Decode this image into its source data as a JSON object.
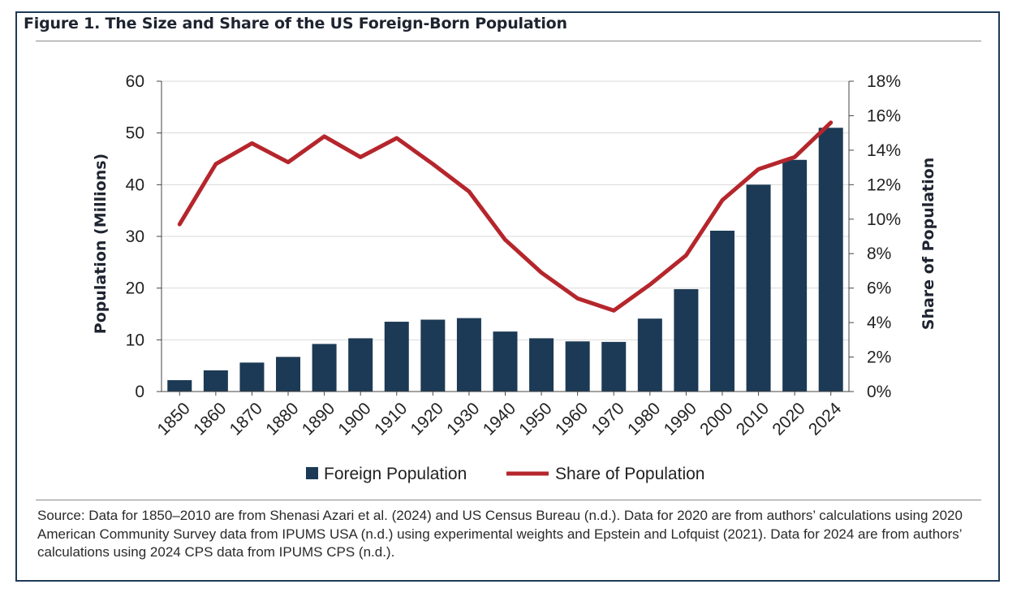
{
  "title": "Figure 1. The Size and Share of the US Foreign-Born Population",
  "source": "Source: Data for 1850–2010 are from Shenasi Azari et al. (2024) and US Census Bureau (n.d.). Data for 2020 are from authors’ calculations using 2020 American Community Survey data from IPUMS USA (n.d.) using experimental weights and Epstein and Lofquist (2021). Data for 2024 are from authors’ calculations using 2024 CPS data from IPUMS CPS (n.d.).",
  "colors": {
    "bar": "#1c3a55",
    "line": "#b5262c",
    "grid": "#d9d9d9",
    "border": "#1f3a57"
  },
  "chart_data": {
    "type": "bar",
    "title": "Figure 1. The Size and Share of the US Foreign-Born Population",
    "categories": [
      "1850",
      "1860",
      "1870",
      "1880",
      "1890",
      "1900",
      "1910",
      "1920",
      "1930",
      "1940",
      "1950",
      "1960",
      "1970",
      "1980",
      "1990",
      "2000",
      "2010",
      "2020",
      "2024"
    ],
    "ylabel": "Population (Millions)",
    "y2label": "Share of Population",
    "ylim": [
      0,
      60
    ],
    "y2lim": [
      0,
      18
    ],
    "yticks": [
      "0",
      "10",
      "20",
      "30",
      "40",
      "50",
      "60"
    ],
    "y2ticks": [
      "0%",
      "2%",
      "4%",
      "6%",
      "8%",
      "10%",
      "12%",
      "14%",
      "16%",
      "18%"
    ],
    "grid": true,
    "legend_position": "bottom",
    "series": [
      {
        "name": "Foreign Population",
        "type": "bar",
        "axis": "left",
        "values": [
          2.2,
          4.1,
          5.6,
          6.7,
          9.2,
          10.3,
          13.5,
          13.9,
          14.2,
          11.6,
          10.3,
          9.7,
          9.6,
          14.1,
          19.8,
          31.1,
          40.0,
          44.8,
          51.0
        ]
      },
      {
        "name": "Share of Population",
        "type": "line",
        "axis": "right",
        "values": [
          9.7,
          13.2,
          14.4,
          13.3,
          14.8,
          13.6,
          14.7,
          13.2,
          11.6,
          8.8,
          6.9,
          5.4,
          4.7,
          6.2,
          7.9,
          11.1,
          12.9,
          13.6,
          15.6
        ]
      }
    ]
  }
}
